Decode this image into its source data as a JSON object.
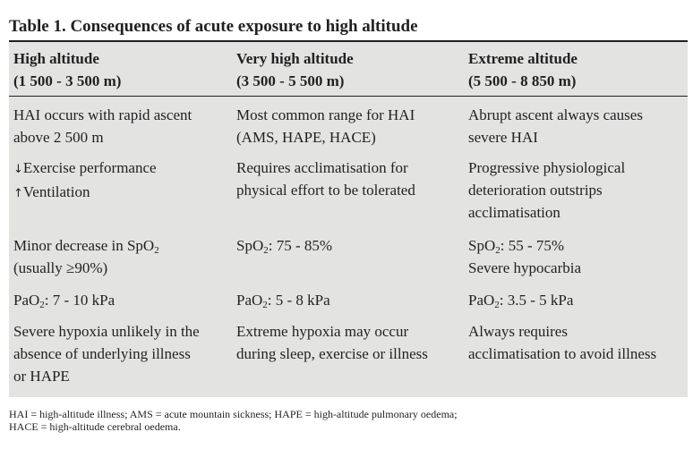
{
  "table": {
    "title": "Table 1. Consequences of acute exposure to high altitude",
    "columns": [
      {
        "name": "High altitude",
        "range": "(1 500 - 3 500 m)"
      },
      {
        "name": "Very high altitude",
        "range": "(3 500 - 5 500 m)"
      },
      {
        "name": "Extreme altitude",
        "range": "(5 500 - 8 850 m)"
      }
    ],
    "rows": [
      {
        "c1": [
          "HAI occurs with rapid ascent",
          "above 2 500 m"
        ],
        "c2": [
          "Most common range for HAI",
          "(AMS, HAPE, HACE)"
        ],
        "c3": [
          "Abrupt ascent always causes",
          "severe HAI"
        ]
      },
      {
        "c1_arrow_down": "↓",
        "c1_line1_text": "Exercise performance",
        "c1_arrow_up": "↑",
        "c1_line2_text": "Ventilation",
        "c2": [
          "Requires acclimatisation for",
          "physical effort to be tolerated"
        ],
        "c3": [
          "Progressive physiological",
          "deterioration outstrips",
          "acclimatisation"
        ]
      },
      {
        "c1_prefix": "Minor decrease in SpO",
        "c1_sub": "2",
        "c1_line2": "(usually ≥90%)",
        "c2_prefix": "SpO",
        "c2_sub": "2",
        "c2_suffix": ": 75 - 85%",
        "c3_prefix": "SpO",
        "c3_sub": "2",
        "c3_suffix": ": 55 - 75%",
        "c3_line2": "Severe hypocarbia"
      },
      {
        "c1_prefix": "PaO",
        "c1_sub": "2",
        "c1_suffix": ": 7 - 10 kPa",
        "c2_prefix": "PaO",
        "c2_sub": "2",
        "c2_suffix": ": 5 - 8 kPa",
        "c3_prefix": "PaO",
        "c3_sub": "2",
        "c3_suffix": ": 3.5 - 5 kPa"
      },
      {
        "c1": [
          "Severe hypoxia unlikely in the",
          "absence of underlying illness",
          "or HAPE"
        ],
        "c2": [
          "Extreme hypoxia may occur",
          "during sleep, exercise or illness"
        ],
        "c3": [
          "Always requires",
          "acclimatisation to avoid illness"
        ]
      }
    ],
    "footnote": [
      "HAI = high-altitude illness; AMS = acute mountain sickness; HAPE = high-altitude pulmonary oedema;",
      "HACE = high-altitude cerebral oedema."
    ]
  }
}
